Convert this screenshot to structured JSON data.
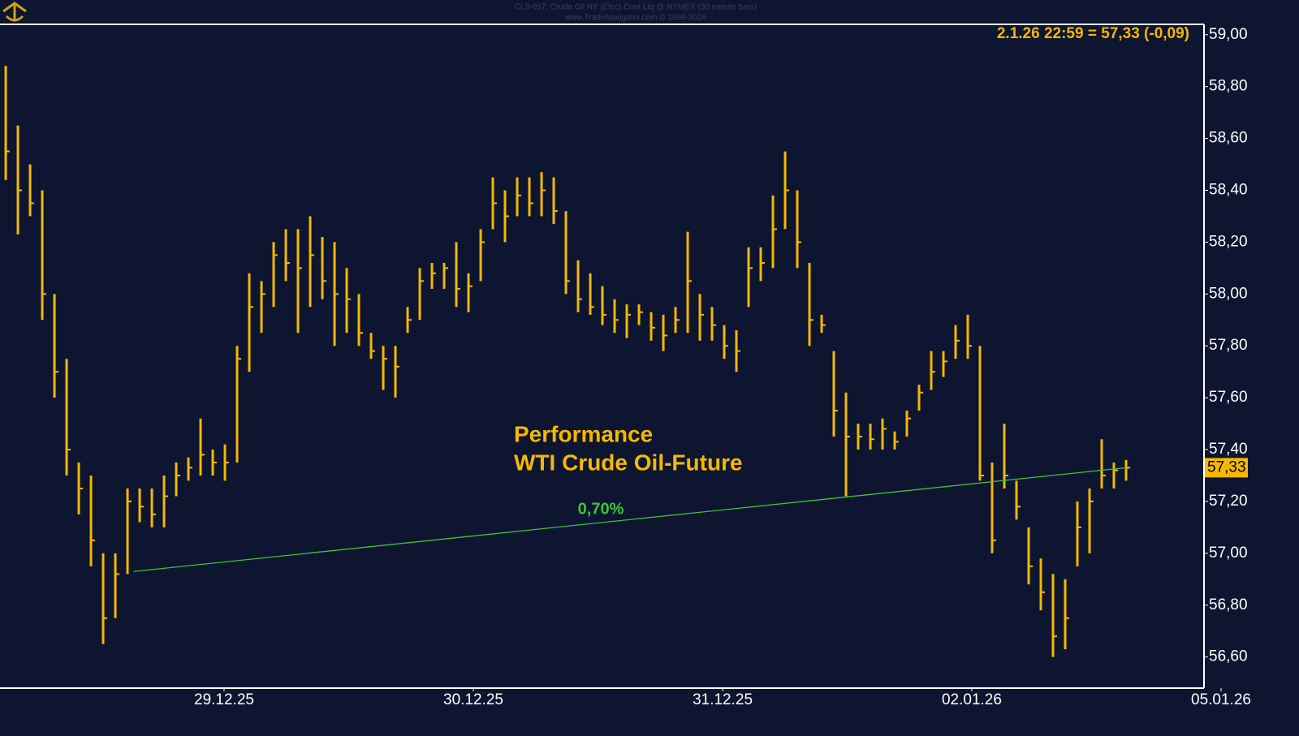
{
  "chart_data": {
    "type": "ohlc",
    "header": [
      "CL3-057: Crude Oil NY (Elec) Cont Liq @ NYMEX (30 minute bars)",
      "www.TradeNavigator.com © 1999-2026"
    ],
    "title": [
      "Performance",
      "WTI Crude Oil-Future"
    ],
    "last_quote": "2.1.26 22:59 = 57,33 (-0,09)",
    "last_price": {
      "value": 57.33,
      "label": "57,33"
    },
    "color": "#f5b800",
    "high": [
      58.88,
      58.65,
      58.5,
      58.4,
      58.0,
      57.75,
      57.35,
      57.3,
      57.0,
      57.0,
      57.25,
      57.25,
      57.25,
      57.3,
      57.35,
      57.37,
      57.52,
      57.4,
      57.42,
      57.8,
      58.08,
      58.05,
      58.2,
      58.25,
      58.25,
      58.3,
      58.22,
      58.2,
      58.1,
      58.0,
      57.85,
      57.8,
      57.8,
      57.95,
      58.1,
      58.12,
      58.12,
      58.2,
      58.08,
      58.25,
      58.45,
      58.4,
      58.45,
      58.45,
      58.47,
      58.45,
      58.32,
      58.13,
      58.08,
      58.03,
      57.98,
      57.96,
      57.96,
      57.93,
      57.92,
      57.95,
      58.24,
      58.0,
      57.95,
      57.88,
      57.86,
      58.18,
      58.18,
      58.38,
      58.55,
      58.4,
      58.12,
      57.92,
      57.78,
      57.62,
      57.5,
      57.5,
      57.52,
      57.47,
      57.55,
      57.65,
      57.78,
      57.78,
      57.88,
      57.92,
      57.8,
      57.35,
      57.5,
      57.28,
      57.1,
      56.98,
      56.92,
      56.9,
      57.2,
      57.25,
      57.44,
      57.35,
      57.36
    ],
    "low": [
      58.44,
      58.23,
      58.3,
      57.9,
      57.6,
      57.3,
      57.15,
      56.95,
      56.65,
      56.75,
      56.92,
      57.12,
      57.1,
      57.1,
      57.22,
      57.28,
      57.3,
      57.3,
      57.28,
      57.35,
      57.7,
      57.85,
      57.95,
      58.05,
      57.85,
      57.95,
      57.98,
      57.8,
      57.85,
      57.8,
      57.75,
      57.63,
      57.6,
      57.85,
      57.9,
      58.02,
      58.02,
      57.95,
      57.93,
      58.05,
      58.25,
      58.2,
      58.3,
      58.3,
      58.3,
      58.27,
      58.0,
      57.93,
      57.92,
      57.88,
      57.85,
      57.83,
      57.88,
      57.82,
      57.78,
      57.85,
      57.85,
      57.82,
      57.82,
      57.75,
      57.7,
      57.95,
      58.05,
      58.1,
      58.25,
      58.1,
      57.8,
      57.85,
      57.45,
      57.22,
      57.4,
      57.4,
      57.4,
      57.4,
      57.45,
      57.55,
      57.63,
      57.68,
      57.75,
      57.75,
      57.28,
      57.0,
      57.25,
      57.13,
      56.88,
      56.78,
      56.6,
      56.63,
      56.95,
      57.0,
      57.25,
      57.25,
      57.28
    ],
    "close": [
      58.55,
      58.4,
      58.35,
      58.0,
      57.7,
      57.4,
      57.25,
      57.05,
      56.75,
      56.92,
      57.2,
      57.18,
      57.15,
      57.22,
      57.3,
      57.33,
      57.38,
      57.35,
      57.35,
      57.75,
      57.95,
      58.0,
      58.15,
      58.12,
      58.1,
      58.15,
      58.05,
      58.0,
      57.98,
      57.85,
      57.78,
      57.75,
      57.72,
      57.9,
      58.05,
      58.08,
      58.1,
      58.02,
      58.03,
      58.2,
      58.35,
      58.3,
      58.38,
      58.35,
      58.4,
      58.32,
      58.05,
      57.98,
      57.95,
      57.92,
      57.9,
      57.92,
      57.93,
      57.87,
      57.84,
      57.9,
      58.05,
      57.92,
      57.88,
      57.8,
      57.78,
      58.1,
      58.12,
      58.25,
      58.4,
      58.2,
      57.9,
      57.88,
      57.55,
      57.45,
      57.45,
      57.44,
      57.48,
      57.43,
      57.52,
      57.62,
      57.7,
      57.74,
      57.82,
      57.8,
      57.3,
      57.05,
      57.3,
      57.18,
      56.95,
      56.85,
      56.68,
      56.75,
      57.1,
      57.2,
      57.3,
      57.32,
      57.33
    ],
    "trendline": {
      "x": [
        10.5,
        92
      ],
      "values": [
        56.93,
        57.33
      ],
      "label": "0,70%",
      "color": "#3cc43c"
    },
    "xlim": [
      -0.47,
      98.4
    ],
    "xticks": [
      {
        "value": 17.93,
        "label": "29.12.25"
      },
      {
        "value": 38.4,
        "label": "30.12.25"
      },
      {
        "value": 58.87,
        "label": "31.12.25"
      },
      {
        "value": 79.33,
        "label": "02.01.26"
      },
      {
        "value": 99.8,
        "label": "05.01.26"
      }
    ],
    "ylim": [
      56.48,
      59.04
    ],
    "yticks": [
      {
        "value": 56.6,
        "label": "56,60"
      },
      {
        "value": 56.8,
        "label": "56,80"
      },
      {
        "value": 57.0,
        "label": "57,00"
      },
      {
        "value": 57.2,
        "label": "57,20"
      },
      {
        "value": 57.4,
        "label": "57,40"
      },
      {
        "value": 57.6,
        "label": "57,60"
      },
      {
        "value": 57.8,
        "label": "57,80"
      },
      {
        "value": 58.0,
        "label": "58,00"
      },
      {
        "value": 58.2,
        "label": "58,20"
      },
      {
        "value": 58.4,
        "label": "58,40"
      },
      {
        "value": 58.6,
        "label": "58,60"
      },
      {
        "value": 58.8,
        "label": "58,80"
      },
      {
        "value": 59.0,
        "label": "59,00"
      }
    ]
  }
}
